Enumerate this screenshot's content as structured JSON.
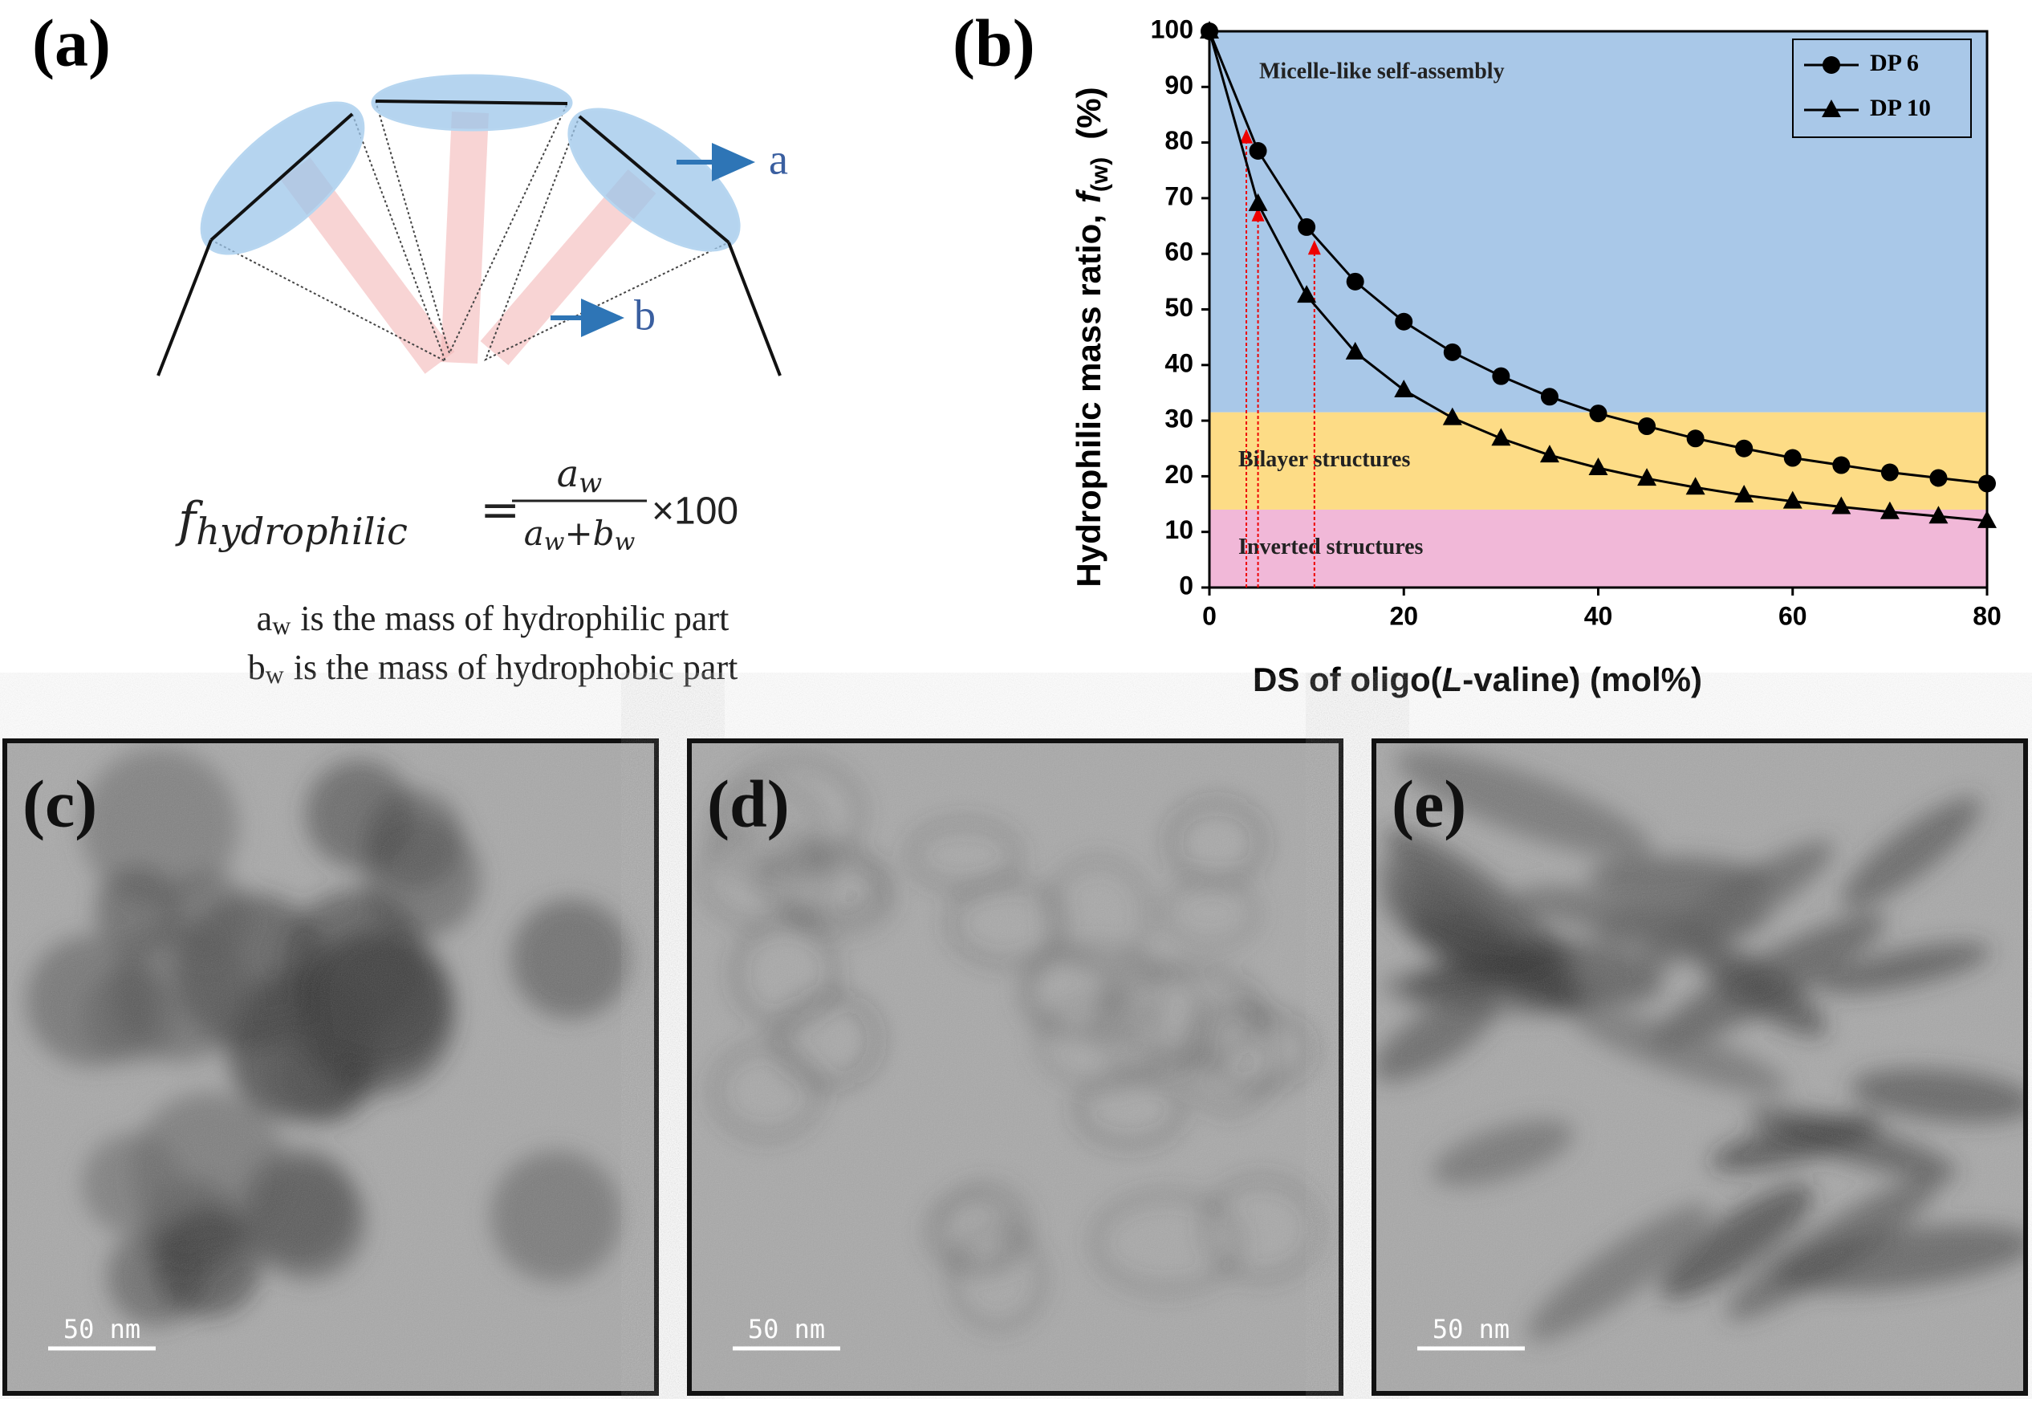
{
  "panel_a": {
    "label": "(a)",
    "arrow_a": "a",
    "arrow_b": "b",
    "formula": {
      "lhs": "f",
      "lhs_sub": "hydrophilic",
      "equals": "=",
      "num": "a",
      "num_sub": "w",
      "den_a": "a",
      "den_a_sub": "w",
      "plus": "+",
      "den_b": "b",
      "den_b_sub": "w",
      "times": "×100"
    },
    "notes": [
      {
        "sym": "a",
        "sub": "w",
        "text": "is the mass of hydrophilic part"
      },
      {
        "sym": "b",
        "sub": "w",
        "text": "is the mass of hydrophobic part"
      }
    ]
  },
  "chart_data": {
    "type": "line",
    "panel_label": "(b)",
    "xlabel": "DS of oligo(",
    "xlabel_italic": "L",
    "xlabel_end": "-valine)  (mol%)",
    "ylabel": "Hydrophilic mass ratio,",
    "ylabel_symbol": "f",
    "ylabel_sub": "(w)",
    "ylabel_unit": "(%)",
    "x": [
      0,
      5,
      10,
      15,
      20,
      25,
      30,
      35,
      40,
      45,
      50,
      55,
      60,
      65,
      70,
      75,
      80
    ],
    "series": [
      {
        "name": "DP 6",
        "color": "#000000",
        "marker": "circle",
        "values": [
          100,
          78.5,
          64.8,
          55,
          47.8,
          42.3,
          38,
          34.3,
          31.3,
          29,
          26.8,
          25,
          23.3,
          22,
          20.7,
          19.7,
          18.7
        ]
      },
      {
        "name": "DP 10",
        "color": "#000000",
        "marker": "triangle",
        "values": [
          100,
          69,
          52.5,
          42.3,
          35.5,
          30.5,
          26.8,
          23.8,
          21.5,
          19.6,
          18,
          16.6,
          15.5,
          14.5,
          13.6,
          12.8,
          12
        ]
      }
    ],
    "regions": [
      {
        "label": "Micelle-like self-assembly",
        "from": 31.5,
        "to": 100,
        "color": "#a9c8e8"
      },
      {
        "label": "Bilayer structures",
        "from": 14,
        "to": 31.5,
        "color": "#fddc86"
      },
      {
        "label": "Inverted structures",
        "from": 0,
        "to": 14,
        "color": "#f1b8d8"
      }
    ],
    "guides": {
      "color": "#ee0000",
      "x": [
        3.8,
        5,
        10.8
      ],
      "y": [
        81,
        67,
        61
      ]
    },
    "xlim": [
      0,
      80
    ],
    "ylim": [
      0,
      100
    ],
    "xticks": [
      0,
      20,
      40,
      60,
      80
    ],
    "yticks": [
      0,
      10,
      20,
      30,
      40,
      50,
      60,
      70,
      80,
      90,
      100
    ],
    "legend": "top-right"
  },
  "panels": [
    {
      "label": "(c)",
      "scale_bar": "50 nm"
    },
    {
      "label": "(d)",
      "scale_bar": "50 nm"
    },
    {
      "label": "(e)",
      "scale_bar": "50 nm"
    }
  ]
}
